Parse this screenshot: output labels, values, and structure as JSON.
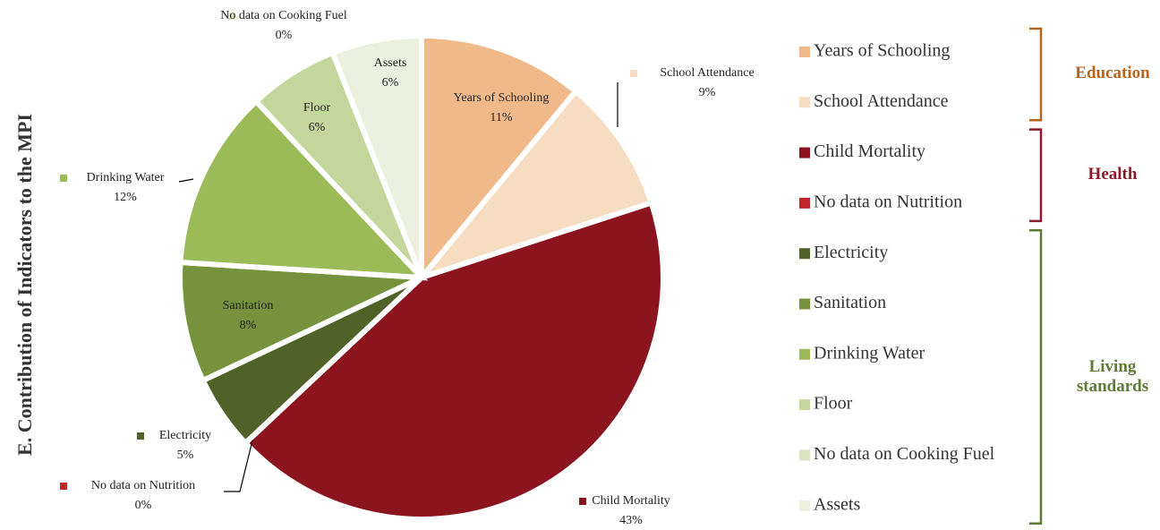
{
  "chart_data": {
    "type": "pie",
    "title": "E. Contribution of Indicators to the MPI",
    "categories": [
      "Years of Schooling",
      "School Attendance",
      "Child Mortality",
      "No data on Nutrition",
      "Electricity",
      "Sanitation",
      "Drinking Water",
      "Floor",
      "No data on Cooking Fuel",
      "Assets"
    ],
    "values": [
      11,
      9,
      43,
      0,
      5,
      8,
      12,
      6,
      0,
      6
    ],
    "value_labels": [
      "11%",
      "9%",
      "43%",
      "0%",
      "5%",
      "8%",
      "12%",
      "6%",
      "0%",
      "6%"
    ],
    "colors": [
      "#efb98a",
      "#f6ddc2",
      "#8b141e",
      "#c0272d",
      "#4f6228",
      "#76923c",
      "#9bbb59",
      "#c3d69b",
      "#d7e4bd",
      "#ebf1de"
    ],
    "groups": [
      {
        "name": "Education",
        "color": "#b5651d"
      },
      {
        "name": "Health",
        "color": "#8b1a2a"
      },
      {
        "name": "Living standards",
        "color": "#5f7a35"
      }
    ]
  }
}
